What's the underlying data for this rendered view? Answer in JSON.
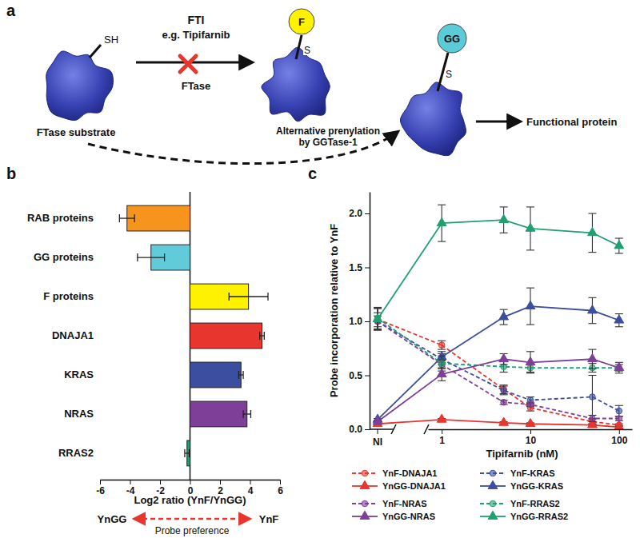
{
  "diagram": {
    "panel": "a",
    "inhibitor": "FTI",
    "example": "e.g. Tipifarnib",
    "enzyme": "FTase",
    "substrate": "FTase substrate",
    "thiol": "SH",
    "thioether": "S",
    "farnesyl": "F",
    "geranylgeranyl": "GG",
    "alternative": [
      "Alternative prenylation",
      "by GGTase-1"
    ],
    "product": "Functional protein"
  },
  "chart_data": [
    {
      "type": "bar",
      "panel": "b",
      "orientation": "horizontal",
      "categories": [
        "RAB proteins",
        "GG proteins",
        "F proteins",
        "DNAJA1",
        "KRAS",
        "NRAS",
        "RRAS2"
      ],
      "values": [
        -4.2,
        -2.6,
        3.9,
        4.8,
        3.4,
        3.8,
        -0.2
      ],
      "errors": [
        0.5,
        0.9,
        1.3,
        0.15,
        0.15,
        0.25,
        0.15
      ],
      "colors": [
        "#f7941d",
        "#62cbd9",
        "#fff200",
        "#e8352e",
        "#3b4ea0",
        "#7e3f98",
        "#21a06f"
      ],
      "xlim": [
        -6,
        6
      ],
      "xticks": [
        -6,
        -4,
        -2,
        0,
        2,
        4,
        6
      ],
      "x_label": "Log2 ratio (YnF/YnGG)",
      "annotations": [
        "YnGG",
        "Probe preference",
        "YnF"
      ]
    },
    {
      "type": "line",
      "panel": "c",
      "log": "x",
      "legend": "bottom",
      "ni_label": "NI",
      "x": [
        1,
        5,
        10,
        50,
        100
      ],
      "xlim": [
        0.7,
        140
      ],
      "xticks": [
        1,
        10,
        100
      ],
      "ylim": [
        0,
        2.2
      ],
      "yticks": [
        {
          "value": 0,
          "label": "0.0"
        },
        {
          "value": 0.5,
          "label": "0.5"
        },
        {
          "value": 1,
          "label": "1.0"
        },
        {
          "value": 1.5,
          "label": "1.5"
        },
        {
          "value": 2,
          "label": "2.0"
        }
      ],
      "x_label": "Tipifarnib (nM)",
      "y_label": "Probe incorporation relative to YnF",
      "series": [
        {
          "name": "YnF-DNAJA1",
          "color": "#e8352e",
          "line_style": "dashed",
          "marker": "circle",
          "ni_value": 1.02,
          "ni_error": 0.1,
          "values": [
            0.78,
            0.37,
            0.2,
            0.07,
            0.04
          ],
          "errors": [
            0.04,
            0.04,
            0.03,
            0.02,
            0.01
          ]
        },
        {
          "name": "YnF-KRAS",
          "color": "#3b4ea0",
          "line_style": "dashed",
          "marker": "circle",
          "ni_value": 1.0,
          "ni_error": 0.08,
          "values": [
            0.65,
            0.36,
            0.27,
            0.3,
            0.17
          ],
          "errors": [
            0.05,
            0.04,
            0.03,
            0.2,
            0.05
          ]
        },
        {
          "name": "YnGG-DNAJA1",
          "color": "#e8352e",
          "line_style": "solid",
          "marker": "triangle",
          "ni_value": 0.05,
          "ni_error": 0.01,
          "values": [
            0.09,
            0.06,
            0.05,
            0.04,
            0.02
          ],
          "errors": [
            0.01,
            0.01,
            0.01,
            0.01,
            0.01
          ]
        },
        {
          "name": "YnGG-KRAS",
          "color": "#3b4ea0",
          "line_style": "solid",
          "marker": "triangle",
          "ni_value": 0.09,
          "ni_error": 0.01,
          "values": [
            0.67,
            1.04,
            1.14,
            1.1,
            1.01
          ],
          "errors": [
            0.05,
            0.07,
            0.17,
            0.12,
            0.06
          ]
        },
        {
          "name": "YnF-NRAS",
          "color": "#7e3f98",
          "line_style": "dashed",
          "marker": "circle",
          "ni_value": 1.0,
          "ni_error": 0.05,
          "values": [
            0.6,
            0.25,
            0.23,
            0.1,
            0.1
          ],
          "errors": [
            0.04,
            0.02,
            0.02,
            0.03,
            0.02
          ]
        },
        {
          "name": "YnF-RRAS2",
          "color": "#21a06f",
          "line_style": "dashed",
          "marker": "circle",
          "ni_value": 1.03,
          "ni_error": 0.1,
          "values": [
            0.61,
            0.58,
            0.57,
            0.57,
            0.57
          ],
          "errors": [
            0.07,
            0.05,
            0.04,
            0.04,
            0.03
          ]
        },
        {
          "name": "YnGG-NRAS",
          "color": "#7e3f98",
          "line_style": "solid",
          "marker": "triangle",
          "ni_value": 0.07,
          "ni_error": 0.01,
          "values": [
            0.51,
            0.65,
            0.62,
            0.65,
            0.57
          ],
          "errors": [
            0.06,
            0.05,
            0.1,
            0.09,
            0.05
          ]
        },
        {
          "name": "YnGG-RRAS2",
          "color": "#21a06f",
          "line_style": "solid",
          "marker": "triangle",
          "ni_value": 1.02,
          "ni_error": 0.1,
          "values": [
            1.91,
            1.94,
            1.86,
            1.82,
            1.7
          ],
          "errors": [
            0.17,
            0.12,
            0.2,
            0.18,
            0.07
          ]
        }
      ]
    }
  ]
}
